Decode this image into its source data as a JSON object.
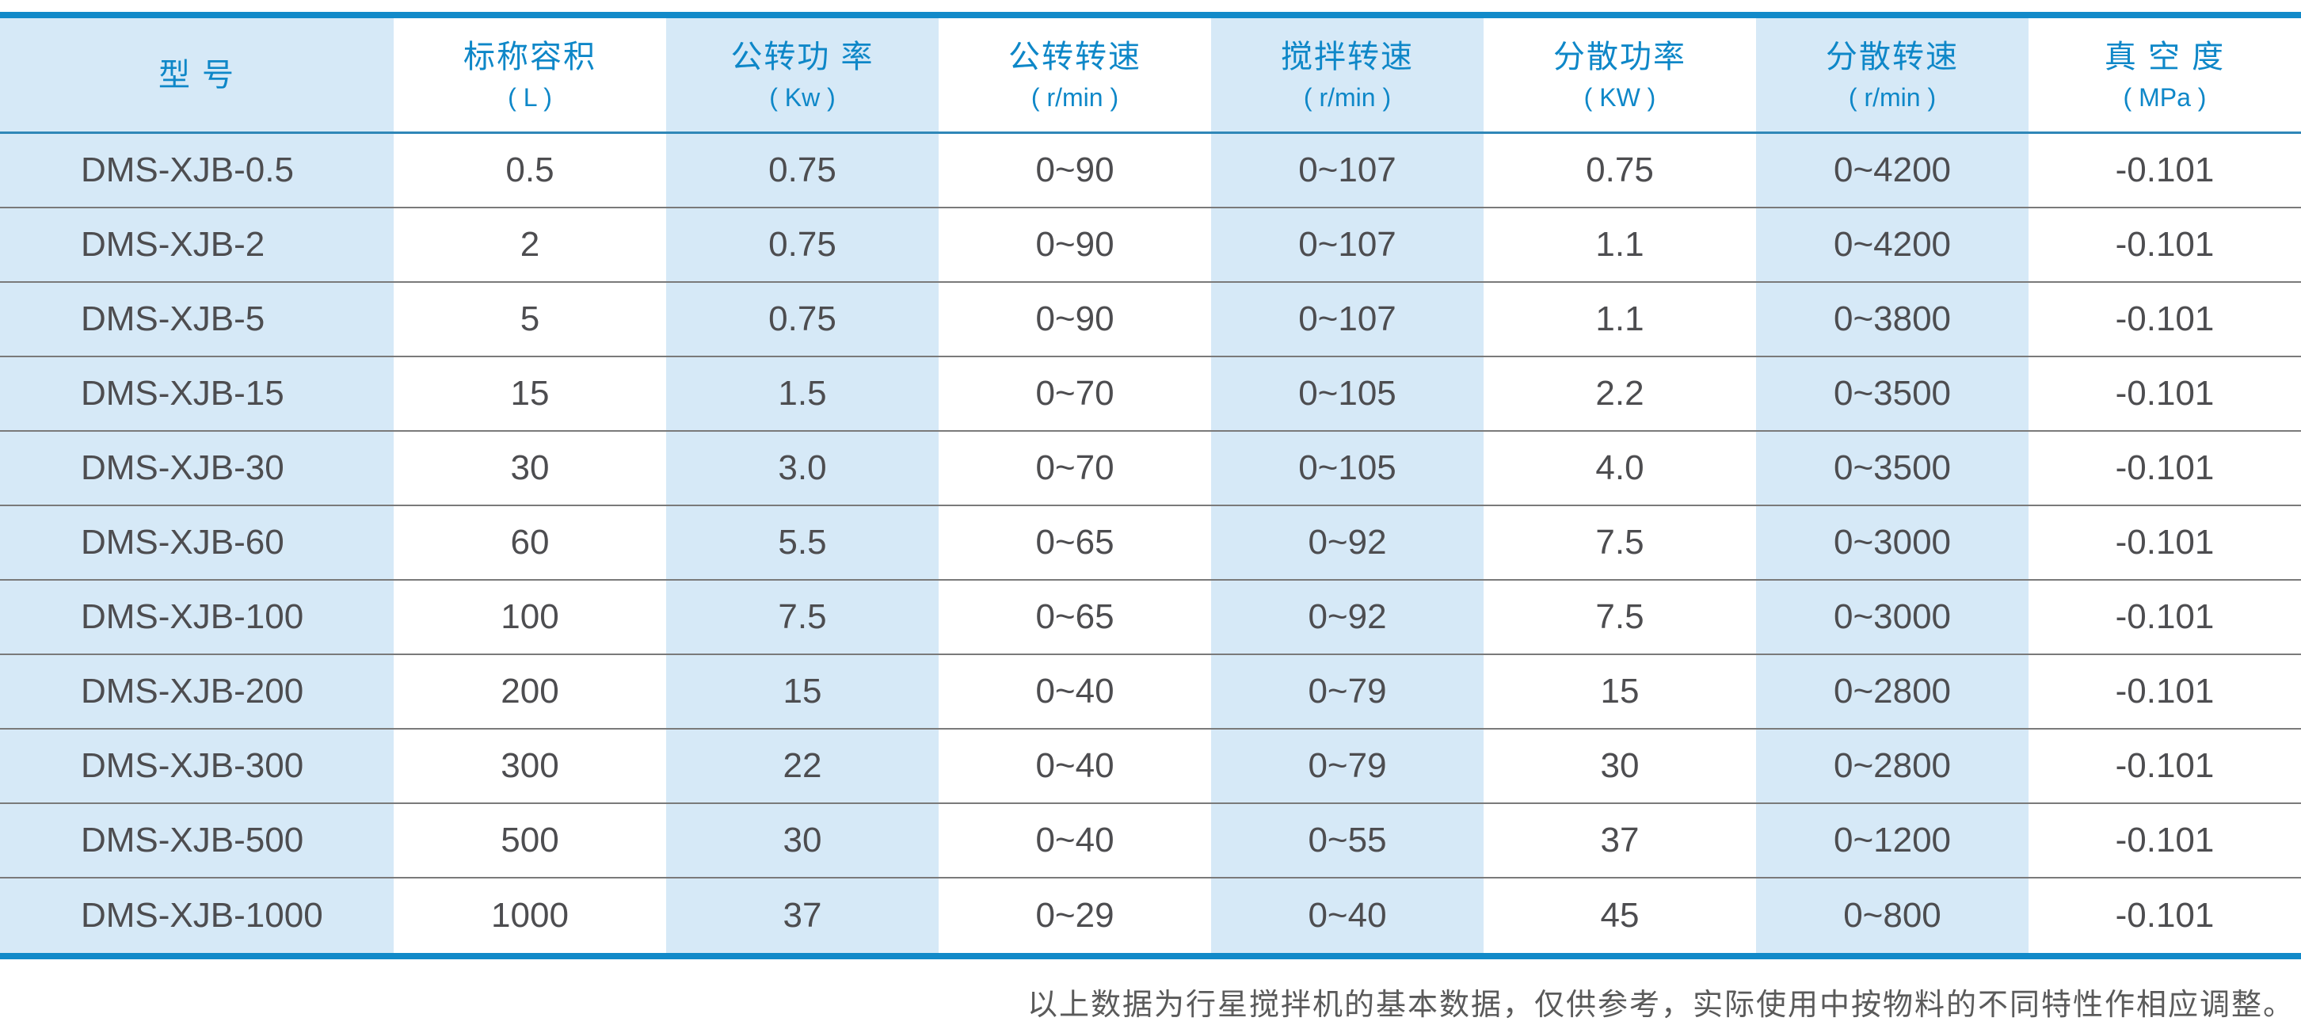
{
  "table": {
    "columns": [
      {
        "label": "型   号",
        "unit": ""
      },
      {
        "label": "标称容积",
        "unit": "( L )"
      },
      {
        "label": "公转功 率",
        "unit": "( Kw )"
      },
      {
        "label": "公转转速",
        "unit": "( r/min )"
      },
      {
        "label": "搅拌转速",
        "unit": "( r/min )"
      },
      {
        "label": "分散功率",
        "unit": "( KW )"
      },
      {
        "label": "分散转速",
        "unit": "( r/min )"
      },
      {
        "label": "真 空 度",
        "unit": "( MPa )"
      }
    ],
    "rows": [
      [
        "DMS-XJB-0.5",
        "0.5",
        "0.75",
        "0~90",
        "0~107",
        "0.75",
        "0~4200",
        "-0.101"
      ],
      [
        "DMS-XJB-2",
        "2",
        "0.75",
        "0~90",
        "0~107",
        "1.1",
        "0~4200",
        "-0.101"
      ],
      [
        "DMS-XJB-5",
        "5",
        "0.75",
        "0~90",
        "0~107",
        "1.1",
        "0~3800",
        "-0.101"
      ],
      [
        "DMS-XJB-15",
        "15",
        "1.5",
        "0~70",
        "0~105",
        "2.2",
        "0~3500",
        "-0.101"
      ],
      [
        "DMS-XJB-30",
        "30",
        "3.0",
        "0~70",
        "0~105",
        "4.0",
        "0~3500",
        "-0.101"
      ],
      [
        "DMS-XJB-60",
        "60",
        "5.5",
        "0~65",
        "0~92",
        "7.5",
        "0~3000",
        "-0.101"
      ],
      [
        "DMS-XJB-100",
        "100",
        "7.5",
        "0~65",
        "0~92",
        "7.5",
        "0~3000",
        "-0.101"
      ],
      [
        "DMS-XJB-200",
        "200",
        "15",
        "0~40",
        "0~79",
        "15",
        "0~2800",
        "-0.101"
      ],
      [
        "DMS-XJB-300",
        "300",
        "22",
        "0~40",
        "0~79",
        "30",
        "0~2800",
        "-0.101"
      ],
      [
        "DMS-XJB-500",
        "500",
        "30",
        "0~40",
        "0~55",
        "37",
        "0~1200",
        "-0.101"
      ],
      [
        "DMS-XJB-1000",
        "1000",
        "37",
        "0~29",
        "0~40",
        "45",
        "0~800",
        "-0.101"
      ]
    ],
    "footnote": "以上数据为行星搅拌机的基本数据，仅供参考，实际使用中按物料的不同特性作相应调整。"
  },
  "colors": {
    "accent_blue": "#128ac9",
    "header_separator_blue": "#2f87b8",
    "band_light_blue": "#d6e9f7",
    "row_line_gray": "#7a7a7a",
    "data_text_gray": "#4d4d50",
    "header_text_blue": "#0e87c8",
    "footnote_gray": "#5a5a5a"
  }
}
